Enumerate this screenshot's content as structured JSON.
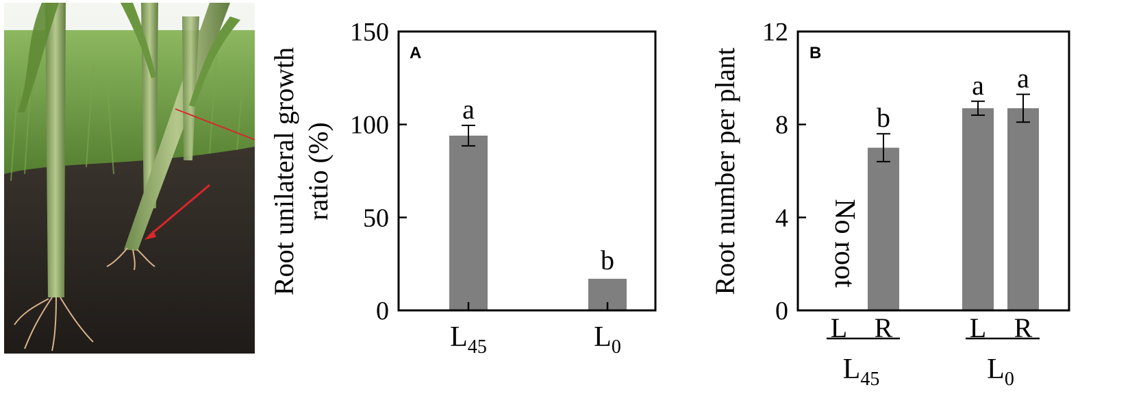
{
  "photo": {
    "description_icon": "maize-field-photo-icon",
    "colors": {
      "soil": "#2e2a26",
      "grass": "#6f9a3e",
      "stem": "#8fa96a",
      "arrow": "#d9262b"
    }
  },
  "chart_data": [
    {
      "type": "bar",
      "panel_label": "A",
      "title": "",
      "xlabel": "",
      "ylabel_line1": "Root unilateral growth",
      "ylabel_line2": "ratio (%)",
      "ylim": [
        0,
        150
      ],
      "yticks": [
        0,
        50,
        100,
        150
      ],
      "categories": [
        {
          "main": "L",
          "sub": "45"
        },
        {
          "main": "L",
          "sub": "0"
        }
      ],
      "values": [
        94,
        17
      ],
      "errors": [
        5.5,
        0
      ],
      "significance": [
        "a",
        "b"
      ],
      "bar_color": "#7f7f7f",
      "grid": false
    },
    {
      "type": "bar",
      "panel_label": "B",
      "title": "",
      "xlabel": "",
      "ylabel": "Root number per plant",
      "ylim": [
        0,
        12
      ],
      "yticks": [
        0,
        4,
        8,
        12
      ],
      "groups": [
        {
          "main": "L",
          "sub": "45",
          "bars": [
            "L",
            "R"
          ]
        },
        {
          "main": "L",
          "sub": "0",
          "bars": [
            "L",
            "R"
          ]
        }
      ],
      "values": [
        0,
        7.0,
        8.7,
        8.7
      ],
      "errors": [
        0,
        0.6,
        0.3,
        0.6
      ],
      "significance": [
        "",
        "b",
        "a",
        "a"
      ],
      "annotation": "No root",
      "bar_color": "#7f7f7f",
      "grid": false
    }
  ]
}
